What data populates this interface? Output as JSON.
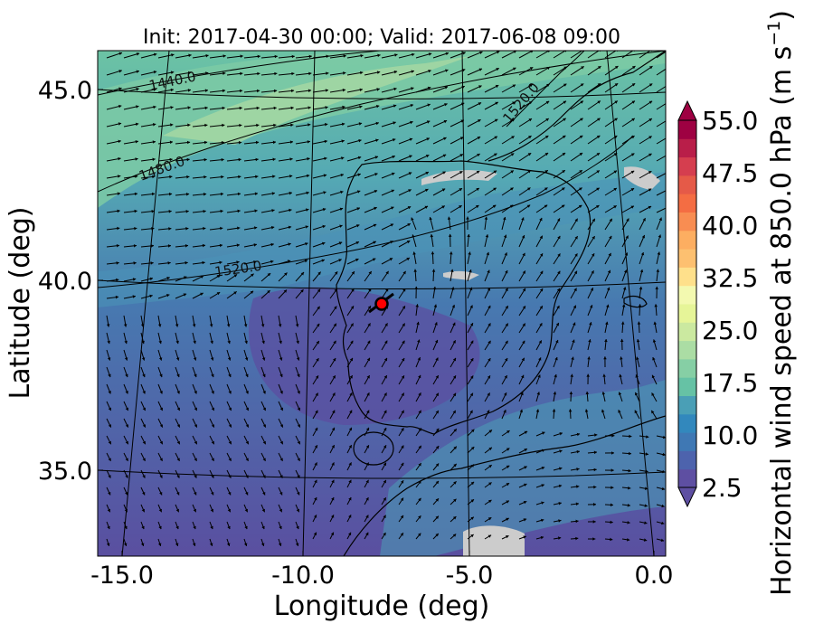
{
  "chart_data": {
    "type": "heatmap",
    "title": "Init: 2017-04-30 00:00; Valid: 2017-06-08 09:00",
    "xlabel": "Longitude (deg)",
    "ylabel": "Latitude (deg)",
    "xlim": [
      -15.8,
      0.3
    ],
    "ylim": [
      32.7,
      46.0
    ],
    "xticks": [
      "-15.0",
      "-10.0",
      "-5.0",
      "0.0"
    ],
    "xtick_values": [
      -15,
      -10,
      -5,
      0
    ],
    "yticks": [
      "35.0",
      "40.0",
      "45.0"
    ],
    "ytick_values": [
      35,
      40,
      45
    ],
    "colorbar": {
      "label_main": "Horizontal wind speed at 850.0 hPa (m s",
      "label_exp": "−1",
      "label_end": ")",
      "min": 2.5,
      "max": 55.0,
      "tick_labels": [
        "2.5",
        "10.0",
        "17.5",
        "25.0",
        "32.5",
        "40.0",
        "47.5",
        "55.0"
      ],
      "tick_values": [
        2.5,
        10.0,
        17.5,
        25.0,
        32.5,
        40.0,
        47.5,
        55.0
      ],
      "colors": [
        "#5e4fa2",
        "#4d63ad",
        "#3f78b4",
        "#3288bd",
        "#4a9fb6",
        "#66c2a5",
        "#86cfa5",
        "#abdda4",
        "#cbe9a0",
        "#e6f598",
        "#f3f9b0",
        "#fee08b",
        "#fdc070",
        "#fdae61",
        "#f88d52",
        "#f46d43",
        "#e55a48",
        "#d53e4f",
        "#b91e49",
        "#9e0142"
      ]
    },
    "contours": [
      {
        "label": "1440.0"
      },
      {
        "label": "1480.0"
      },
      {
        "label": "1520.0"
      },
      {
        "label": "1520.0"
      }
    ],
    "marker": {
      "lon": -7.7,
      "lat": 39.35,
      "color": "#ff0000"
    }
  }
}
